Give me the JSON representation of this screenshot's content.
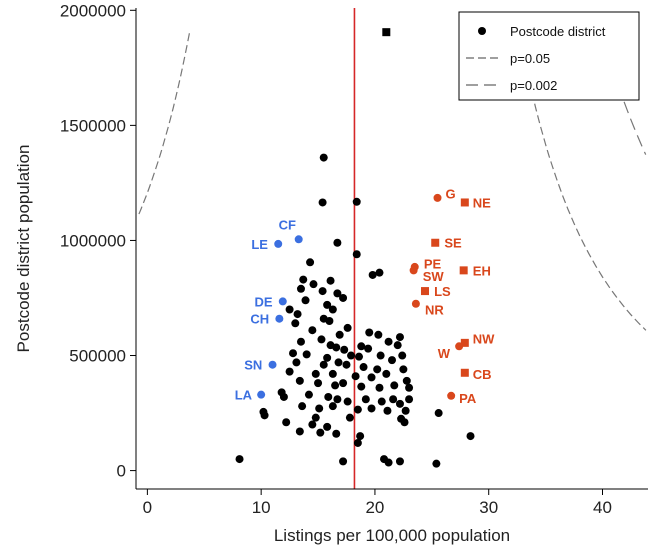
{
  "chart_data": {
    "type": "scatter",
    "title": "",
    "xlabel": "Listings per 100,000 population",
    "ylabel": "Postcode district population",
    "xlim": [
      -1,
      44
    ],
    "ylim": [
      -80000,
      2010000
    ],
    "x_ticks": [
      0,
      10,
      20,
      30,
      40
    ],
    "y_ticks": [
      0,
      500000,
      1000000,
      1500000,
      2000000
    ],
    "x_tick_labels": [
      "0",
      "10",
      "20",
      "30",
      "40"
    ],
    "y_tick_labels": [
      "0",
      "500000",
      "1000000",
      "1500000",
      "2000000"
    ],
    "grid": false,
    "mean_line": {
      "x": 18.2,
      "color": "#d62728"
    },
    "legend": {
      "placement": "top-right",
      "entries": [
        {
          "label": "Postcode district",
          "style": "marker"
        },
        {
          "label": "p=0.05",
          "style": "dash-short"
        },
        {
          "label": "p=0.002",
          "style": "dash-long"
        }
      ]
    },
    "funnel": {
      "center": 18.2,
      "y_min": 25000,
      "y_max": 1900000,
      "limits": [
        {
          "name": "p=0.05",
          "k": 400000
        },
        {
          "name": "p=0.002",
          "k": 600000
        }
      ]
    },
    "colors": {
      "black": "#000000",
      "blue": "#3b6fe0",
      "red": "#d9471c"
    },
    "black_points": [
      {
        "x": 21.0,
        "y": 1905000,
        "shape": "square"
      },
      {
        "x": 15.5,
        "y": 1360000
      },
      {
        "x": 15.4,
        "y": 1165000
      },
      {
        "x": 18.4,
        "y": 1168000
      },
      {
        "x": 16.7,
        "y": 990000
      },
      {
        "x": 18.4,
        "y": 940000
      },
      {
        "x": 14.3,
        "y": 905000
      },
      {
        "x": 20.4,
        "y": 860000
      },
      {
        "x": 19.8,
        "y": 850000
      },
      {
        "x": 13.7,
        "y": 830000
      },
      {
        "x": 16.1,
        "y": 825000
      },
      {
        "x": 14.6,
        "y": 810000
      },
      {
        "x": 13.5,
        "y": 790000
      },
      {
        "x": 15.4,
        "y": 780000
      },
      {
        "x": 16.7,
        "y": 770000
      },
      {
        "x": 17.2,
        "y": 750000
      },
      {
        "x": 13.9,
        "y": 740000
      },
      {
        "x": 15.8,
        "y": 720000
      },
      {
        "x": 12.5,
        "y": 700000
      },
      {
        "x": 16.3,
        "y": 700000
      },
      {
        "x": 13.2,
        "y": 680000
      },
      {
        "x": 15.5,
        "y": 660000
      },
      {
        "x": 16.0,
        "y": 650000
      },
      {
        "x": 13.0,
        "y": 640000
      },
      {
        "x": 14.5,
        "y": 610000
      },
      {
        "x": 17.6,
        "y": 620000
      },
      {
        "x": 16.9,
        "y": 590000
      },
      {
        "x": 19.5,
        "y": 600000
      },
      {
        "x": 20.3,
        "y": 590000
      },
      {
        "x": 13.5,
        "y": 560000
      },
      {
        "x": 15.3,
        "y": 570000
      },
      {
        "x": 16.1,
        "y": 545000
      },
      {
        "x": 16.6,
        "y": 535000
      },
      {
        "x": 17.3,
        "y": 525000
      },
      {
        "x": 18.8,
        "y": 540000
      },
      {
        "x": 19.4,
        "y": 530000
      },
      {
        "x": 21.2,
        "y": 560000
      },
      {
        "x": 22.0,
        "y": 545000
      },
      {
        "x": 22.2,
        "y": 580000
      },
      {
        "x": 12.8,
        "y": 510000
      },
      {
        "x": 14.0,
        "y": 505000
      },
      {
        "x": 15.8,
        "y": 490000
      },
      {
        "x": 17.9,
        "y": 500000
      },
      {
        "x": 18.6,
        "y": 495000
      },
      {
        "x": 20.5,
        "y": 500000
      },
      {
        "x": 21.5,
        "y": 480000
      },
      {
        "x": 22.4,
        "y": 500000
      },
      {
        "x": 13.1,
        "y": 470000
      },
      {
        "x": 15.5,
        "y": 460000
      },
      {
        "x": 16.8,
        "y": 470000
      },
      {
        "x": 17.5,
        "y": 460000
      },
      {
        "x": 19.0,
        "y": 450000
      },
      {
        "x": 20.2,
        "y": 440000
      },
      {
        "x": 22.5,
        "y": 440000
      },
      {
        "x": 12.5,
        "y": 430000
      },
      {
        "x": 14.8,
        "y": 420000
      },
      {
        "x": 16.3,
        "y": 420000
      },
      {
        "x": 18.3,
        "y": 410000
      },
      {
        "x": 19.7,
        "y": 405000
      },
      {
        "x": 21.0,
        "y": 420000
      },
      {
        "x": 22.8,
        "y": 390000
      },
      {
        "x": 13.4,
        "y": 390000
      },
      {
        "x": 15.0,
        "y": 380000
      },
      {
        "x": 16.5,
        "y": 370000
      },
      {
        "x": 17.2,
        "y": 380000
      },
      {
        "x": 18.8,
        "y": 365000
      },
      {
        "x": 20.4,
        "y": 360000
      },
      {
        "x": 21.7,
        "y": 370000
      },
      {
        "x": 23.0,
        "y": 360000
      },
      {
        "x": 11.8,
        "y": 340000
      },
      {
        "x": 12.0,
        "y": 320000
      },
      {
        "x": 14.2,
        "y": 330000
      },
      {
        "x": 15.9,
        "y": 320000
      },
      {
        "x": 16.7,
        "y": 310000
      },
      {
        "x": 17.6,
        "y": 300000
      },
      {
        "x": 19.2,
        "y": 310000
      },
      {
        "x": 20.6,
        "y": 300000
      },
      {
        "x": 21.6,
        "y": 310000
      },
      {
        "x": 22.2,
        "y": 290000
      },
      {
        "x": 23.0,
        "y": 310000
      },
      {
        "x": 13.6,
        "y": 280000
      },
      {
        "x": 15.1,
        "y": 270000
      },
      {
        "x": 16.3,
        "y": 280000
      },
      {
        "x": 18.5,
        "y": 265000
      },
      {
        "x": 19.7,
        "y": 270000
      },
      {
        "x": 21.1,
        "y": 260000
      },
      {
        "x": 22.7,
        "y": 260000
      },
      {
        "x": 10.2,
        "y": 255000
      },
      {
        "x": 10.3,
        "y": 240000
      },
      {
        "x": 14.8,
        "y": 230000
      },
      {
        "x": 17.8,
        "y": 230000
      },
      {
        "x": 22.3,
        "y": 225000
      },
      {
        "x": 22.6,
        "y": 210000
      },
      {
        "x": 12.2,
        "y": 210000
      },
      {
        "x": 14.5,
        "y": 200000
      },
      {
        "x": 15.8,
        "y": 190000
      },
      {
        "x": 13.4,
        "y": 170000
      },
      {
        "x": 15.2,
        "y": 165000
      },
      {
        "x": 16.6,
        "y": 160000
      },
      {
        "x": 18.7,
        "y": 150000
      },
      {
        "x": 25.6,
        "y": 250000
      },
      {
        "x": 28.4,
        "y": 150000
      },
      {
        "x": 18.5,
        "y": 120000
      },
      {
        "x": 8.1,
        "y": 50000
      },
      {
        "x": 17.2,
        "y": 40000
      },
      {
        "x": 20.8,
        "y": 50000
      },
      {
        "x": 21.2,
        "y": 35000
      },
      {
        "x": 22.2,
        "y": 40000
      },
      {
        "x": 25.4,
        "y": 30000
      }
    ],
    "labeled_points": [
      {
        "label": "CF",
        "x": 13.3,
        "y": 1005000,
        "color": "blue",
        "shape": "circle",
        "lx": 12.3,
        "ly": 1070000,
        "anchor": "middle"
      },
      {
        "label": "LE",
        "x": 11.5,
        "y": 985000,
        "color": "blue",
        "shape": "circle",
        "lx": 10.6,
        "ly": 985000,
        "anchor": "end"
      },
      {
        "label": "DE",
        "x": 11.9,
        "y": 735000,
        "color": "blue",
        "shape": "circle",
        "lx": 11.0,
        "ly": 735000,
        "anchor": "end"
      },
      {
        "label": "CH",
        "x": 11.6,
        "y": 660000,
        "color": "blue",
        "shape": "circle",
        "lx": 10.7,
        "ly": 660000,
        "anchor": "end"
      },
      {
        "label": "SN",
        "x": 11.0,
        "y": 460000,
        "color": "blue",
        "shape": "circle",
        "lx": 10.1,
        "ly": 460000,
        "anchor": "end"
      },
      {
        "label": "LA",
        "x": 10.0,
        "y": 330000,
        "color": "blue",
        "shape": "circle",
        "lx": 9.2,
        "ly": 330000,
        "anchor": "end"
      },
      {
        "label": "G",
        "x": 25.5,
        "y": 1185000,
        "color": "red",
        "shape": "circle",
        "lx": 26.2,
        "ly": 1205000,
        "anchor": "start"
      },
      {
        "label": "NE",
        "x": 27.9,
        "y": 1165000,
        "color": "red",
        "shape": "square",
        "lx": 28.6,
        "ly": 1165000,
        "anchor": "start"
      },
      {
        "label": "SE",
        "x": 25.3,
        "y": 990000,
        "color": "red",
        "shape": "square",
        "lx": 26.1,
        "ly": 990000,
        "anchor": "start"
      },
      {
        "label": "PE",
        "x": 23.5,
        "y": 885000,
        "color": "red",
        "shape": "circle",
        "lx": 24.3,
        "ly": 900000,
        "anchor": "start"
      },
      {
        "label": "SW",
        "x": 23.4,
        "y": 870000,
        "color": "red",
        "shape": "circle",
        "lx": 24.2,
        "ly": 845000,
        "anchor": "start"
      },
      {
        "label": "EH",
        "x": 27.8,
        "y": 870000,
        "color": "red",
        "shape": "square",
        "lx": 28.6,
        "ly": 870000,
        "anchor": "start"
      },
      {
        "label": "LS",
        "x": 24.4,
        "y": 780000,
        "color": "red",
        "shape": "square",
        "lx": 25.2,
        "ly": 780000,
        "anchor": "start"
      },
      {
        "label": "NR",
        "x": 23.6,
        "y": 725000,
        "color": "red",
        "shape": "circle",
        "lx": 24.4,
        "ly": 700000,
        "anchor": "start"
      },
      {
        "label": "NW",
        "x": 27.9,
        "y": 555000,
        "color": "red",
        "shape": "square",
        "lx": 28.6,
        "ly": 575000,
        "anchor": "start"
      },
      {
        "label": "W",
        "x": 27.4,
        "y": 540000,
        "color": "red",
        "shape": "circle",
        "lx": 26.6,
        "ly": 510000,
        "anchor": "end"
      },
      {
        "label": "CB",
        "x": 27.9,
        "y": 425000,
        "color": "red",
        "shape": "square",
        "lx": 28.6,
        "ly": 420000,
        "anchor": "start"
      },
      {
        "label": "PA",
        "x": 26.7,
        "y": 325000,
        "color": "red",
        "shape": "circle",
        "lx": 27.4,
        "ly": 315000,
        "anchor": "start"
      }
    ]
  }
}
